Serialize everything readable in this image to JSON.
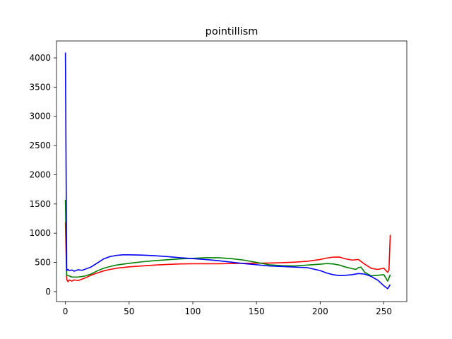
{
  "chart_data": {
    "type": "line",
    "title": "pointillism",
    "xlabel": "",
    "ylabel": "",
    "xlim": [
      -7,
      268
    ],
    "ylim": [
      -170,
      4290
    ],
    "xticks": [
      0,
      50,
      100,
      150,
      200,
      250
    ],
    "yticks": [
      0,
      500,
      1000,
      1500,
      2000,
      2500,
      3000,
      3500,
      4000
    ],
    "grid": false,
    "legend": "none",
    "series": [
      {
        "color": "#ff0000",
        "points": [
          [
            0,
            1190
          ],
          [
            1,
            210
          ],
          [
            2,
            170
          ],
          [
            3,
            200
          ],
          [
            5,
            180
          ],
          [
            7,
            200
          ],
          [
            10,
            190
          ],
          [
            15,
            230
          ],
          [
            20,
            280
          ],
          [
            25,
            320
          ],
          [
            30,
            355
          ],
          [
            35,
            380
          ],
          [
            40,
            400
          ],
          [
            50,
            425
          ],
          [
            60,
            440
          ],
          [
            70,
            455
          ],
          [
            80,
            465
          ],
          [
            90,
            475
          ],
          [
            100,
            478
          ],
          [
            110,
            478
          ],
          [
            120,
            478
          ],
          [
            130,
            480
          ],
          [
            140,
            485
          ],
          [
            150,
            487
          ],
          [
            160,
            490
          ],
          [
            170,
            495
          ],
          [
            180,
            505
          ],
          [
            190,
            520
          ],
          [
            200,
            550
          ],
          [
            205,
            575
          ],
          [
            210,
            590
          ],
          [
            215,
            592
          ],
          [
            220,
            560
          ],
          [
            225,
            540
          ],
          [
            230,
            550
          ],
          [
            235,
            470
          ],
          [
            240,
            400
          ],
          [
            245,
            380
          ],
          [
            250,
            400
          ],
          [
            253,
            330
          ],
          [
            254,
            370
          ],
          [
            255,
            970
          ]
        ]
      },
      {
        "color": "#008000",
        "points": [
          [
            0,
            1570
          ],
          [
            1,
            280
          ],
          [
            3,
            270
          ],
          [
            5,
            250
          ],
          [
            10,
            250
          ],
          [
            15,
            265
          ],
          [
            20,
            300
          ],
          [
            25,
            355
          ],
          [
            30,
            400
          ],
          [
            35,
            430
          ],
          [
            40,
            455
          ],
          [
            50,
            485
          ],
          [
            60,
            510
          ],
          [
            70,
            530
          ],
          [
            80,
            545
          ],
          [
            90,
            560
          ],
          [
            100,
            570
          ],
          [
            110,
            580
          ],
          [
            120,
            580
          ],
          [
            130,
            565
          ],
          [
            140,
            540
          ],
          [
            150,
            500
          ],
          [
            160,
            460
          ],
          [
            170,
            445
          ],
          [
            180,
            440
          ],
          [
            190,
            455
          ],
          [
            200,
            470
          ],
          [
            205,
            480
          ],
          [
            210,
            475
          ],
          [
            215,
            455
          ],
          [
            220,
            420
          ],
          [
            225,
            395
          ],
          [
            228,
            380
          ],
          [
            230,
            410
          ],
          [
            232,
            420
          ],
          [
            235,
            330
          ],
          [
            240,
            270
          ],
          [
            245,
            280
          ],
          [
            250,
            290
          ],
          [
            253,
            180
          ],
          [
            255,
            290
          ]
        ]
      },
      {
        "color": "#0000ff",
        "points": [
          [
            0,
            4090
          ],
          [
            1,
            360
          ],
          [
            2,
            380
          ],
          [
            3,
            360
          ],
          [
            5,
            370
          ],
          [
            7,
            350
          ],
          [
            10,
            375
          ],
          [
            13,
            365
          ],
          [
            15,
            380
          ],
          [
            20,
            420
          ],
          [
            25,
            490
          ],
          [
            30,
            560
          ],
          [
            35,
            600
          ],
          [
            40,
            620
          ],
          [
            45,
            630
          ],
          [
            50,
            630
          ],
          [
            60,
            625
          ],
          [
            70,
            615
          ],
          [
            80,
            600
          ],
          [
            90,
            580
          ],
          [
            100,
            565
          ],
          [
            110,
            550
          ],
          [
            120,
            530
          ],
          [
            130,
            505
          ],
          [
            140,
            480
          ],
          [
            150,
            460
          ],
          [
            160,
            440
          ],
          [
            170,
            430
          ],
          [
            180,
            420
          ],
          [
            190,
            410
          ],
          [
            200,
            360
          ],
          [
            205,
            320
          ],
          [
            210,
            290
          ],
          [
            215,
            275
          ],
          [
            220,
            280
          ],
          [
            225,
            290
          ],
          [
            230,
            310
          ],
          [
            235,
            300
          ],
          [
            240,
            260
          ],
          [
            245,
            200
          ],
          [
            250,
            100
          ],
          [
            253,
            50
          ],
          [
            255,
            120
          ]
        ]
      }
    ]
  }
}
